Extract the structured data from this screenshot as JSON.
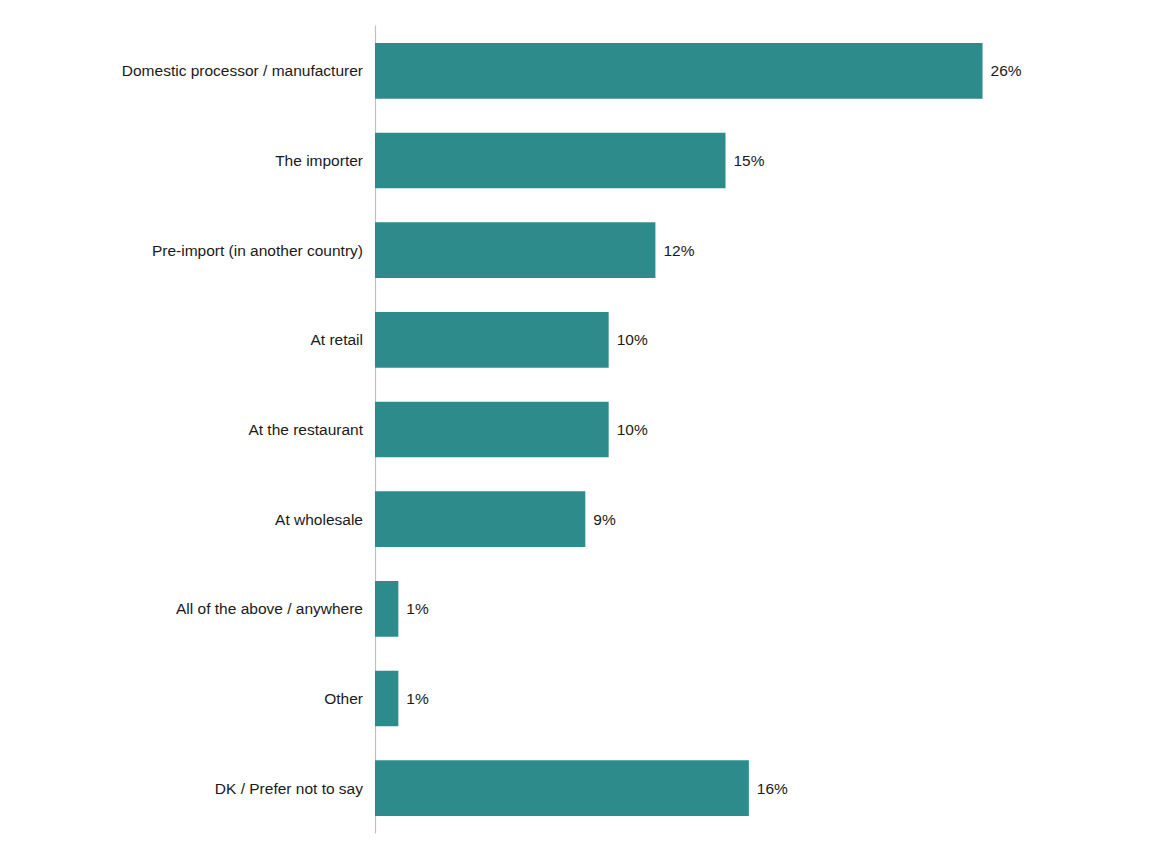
{
  "chart_data": {
    "type": "bar",
    "orientation": "horizontal",
    "categories": [
      "DK / Prefer not to say",
      "Other",
      "All of the above / anywhere",
      "At wholesale",
      "At the restaurant",
      "At retail",
      "Pre-import (in another country)",
      "The importer",
      "Domestic processor / manufacturer"
    ],
    "values": [
      16,
      1,
      1,
      9,
      10,
      10,
      12,
      15,
      26
    ],
    "value_labels": [
      "16%",
      "1%",
      "1%",
      "9%",
      "10%",
      "10%",
      "12%",
      "15%",
      "26%"
    ],
    "color": "#2e8b8b",
    "xlim": [
      0,
      30
    ],
    "data_labels": true,
    "tick_labels": "y",
    "grid": false
  }
}
